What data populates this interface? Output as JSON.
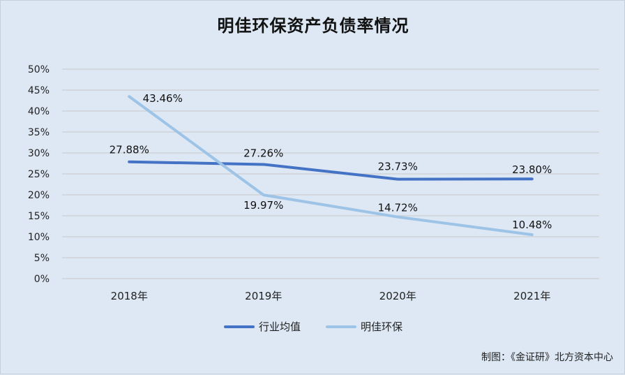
{
  "chart_data": {
    "type": "line",
    "title": "明佳环保资产负债率情况",
    "categories": [
      "2018年",
      "2019年",
      "2020年",
      "2021年"
    ],
    "y_ticks": [
      "0%",
      "5%",
      "10%",
      "15%",
      "20%",
      "25%",
      "30%",
      "35%",
      "40%",
      "45%",
      "50%"
    ],
    "ylim": [
      0,
      50
    ],
    "grid": true,
    "legend_position": "bottom",
    "series": [
      {
        "name": "行业均值",
        "values": [
          27.88,
          27.26,
          23.73,
          23.8
        ],
        "labels": [
          "27.88%",
          "27.26%",
          "23.73%",
          "23.80%"
        ],
        "color": "#4472c4"
      },
      {
        "name": "明佳环保",
        "values": [
          43.46,
          19.97,
          14.72,
          10.48
        ],
        "labels": [
          "43.46%",
          "19.97%",
          "14.72%",
          "10.48%"
        ],
        "color": "#9dc3e6"
      }
    ]
  },
  "source_text": "制图：《金证研》北方资本中心",
  "colors": {
    "background": "#dde8f4",
    "gridline": "#c8c8c8"
  }
}
